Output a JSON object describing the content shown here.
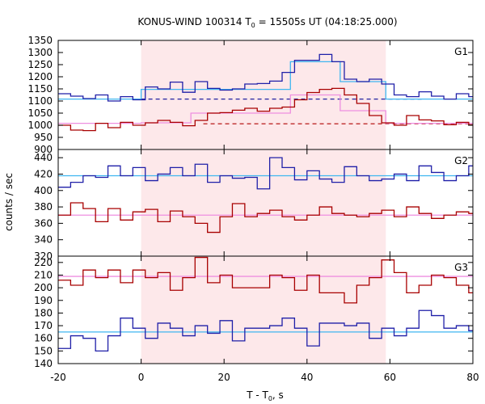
{
  "chart_data": {
    "type": "line",
    "title": "KONUS-WIND 100314 T",
    "title_sub": "0",
    "title_rest": " = 15505s UT (04:18:25.000)",
    "xlabel_main": "T - T",
    "xlabel_sub": "0",
    "xlabel_rest": ", s",
    "ylabel": "counts / sec",
    "xlim": [
      -20,
      80
    ],
    "x_ticks": [
      -20,
      0,
      20,
      40,
      60,
      80
    ],
    "shaded_interval": [
      0,
      59
    ],
    "colors": {
      "blue_step": "#1f1fa8",
      "red_step": "#a80000",
      "blue_fit": "#3fb6f0",
      "pink_fit": "#ee8fe0",
      "blue_bg": "#2222a0",
      "red_bg": "#b00000",
      "shade": "#fde8ea"
    },
    "panels": [
      {
        "name": "G1",
        "ylim": [
          900,
          1350
        ],
        "y_ticks": [
          900,
          950,
          1000,
          1050,
          1100,
          1150,
          1200,
          1250,
          1300,
          1350
        ],
        "bin_edges": [
          -20,
          -17,
          -14,
          -11,
          -8,
          -5,
          -2,
          1,
          4,
          7,
          10,
          13,
          16,
          19,
          22,
          25,
          28,
          31,
          34,
          37,
          40,
          43,
          46,
          49,
          52,
          55,
          58,
          61,
          64,
          67,
          70,
          73,
          76,
          79,
          80
        ],
        "blue_step": [
          1130,
          1120,
          1110,
          1125,
          1100,
          1118,
          1105,
          1158,
          1150,
          1178,
          1136,
          1180,
          1152,
          1145,
          1150,
          1170,
          1172,
          1182,
          1218,
          1268,
          1268,
          1292,
          1262,
          1190,
          1180,
          1190,
          1170,
          1125,
          1118,
          1138,
          1120,
          1108,
          1130,
          1118
        ],
        "red_step": [
          1000,
          980,
          978,
          1008,
          990,
          1012,
          1000,
          1010,
          1020,
          1012,
          998,
          1020,
          1050,
          1052,
          1062,
          1070,
          1058,
          1070,
          1075,
          1105,
          1135,
          1148,
          1152,
          1125,
          1090,
          1040,
          1010,
          1000,
          1040,
          1022,
          1018,
          1002,
          1012,
          1002
        ],
        "blue_fit": {
          "pre": 1108,
          "segments": [
            [
              0,
              6,
              1148
            ],
            [
              6,
              12,
              1148
            ],
            [
              12,
              18,
              1148
            ],
            [
              18,
              24,
              1148
            ],
            [
              24,
              30,
              1148
            ],
            [
              30,
              36,
              1148
            ],
            [
              36,
              42,
              1262
            ],
            [
              42,
              48,
              1262
            ],
            [
              48,
              54,
              1180
            ],
            [
              54,
              59,
              1180
            ]
          ],
          "post": 1108
        },
        "pink_fit": {
          "pre": 1008,
          "segments": [
            [
              0,
              6,
              1010
            ],
            [
              6,
              12,
              1010
            ],
            [
              12,
              18,
              1050
            ],
            [
              18,
              24,
              1050
            ],
            [
              24,
              30,
              1050
            ],
            [
              30,
              36,
              1050
            ],
            [
              36,
              42,
              1125
            ],
            [
              42,
              48,
              1125
            ],
            [
              48,
              54,
              1060
            ],
            [
              54,
              59,
              1060
            ]
          ],
          "post": 1008
        },
        "blue_bg": 1108,
        "red_bg": 1006
      },
      {
        "name": "G2",
        "ylim": [
          320,
          450
        ],
        "y_ticks": [
          320,
          340,
          360,
          380,
          400,
          420,
          440
        ],
        "bin_edges": [
          -20,
          -17,
          -14,
          -11,
          -8,
          -5,
          -2,
          1,
          4,
          7,
          10,
          13,
          16,
          19,
          22,
          25,
          28,
          31,
          34,
          37,
          40,
          43,
          46,
          49,
          52,
          55,
          58,
          61,
          64,
          67,
          70,
          73,
          76,
          79,
          80
        ],
        "blue_step": [
          404,
          410,
          418,
          416,
          430,
          418,
          428,
          412,
          420,
          428,
          418,
          432,
          410,
          418,
          415,
          416,
          402,
          440,
          428,
          413,
          424,
          414,
          410,
          429,
          418,
          412,
          414,
          420,
          412,
          430,
          422,
          412,
          418,
          430
        ],
        "red_step": [
          370,
          385,
          378,
          362,
          378,
          364,
          374,
          377,
          362,
          375,
          368,
          360,
          349,
          368,
          384,
          368,
          372,
          376,
          368,
          364,
          370,
          380,
          372,
          370,
          368,
          372,
          376,
          368,
          380,
          372,
          366,
          370,
          374,
          372
        ],
        "blue_fit": {
          "pre": 418,
          "segments": [
            [
              0,
              59,
              418
            ]
          ],
          "post": 418
        },
        "pink_fit": {
          "pre": 370,
          "segments": [
            [
              0,
              59,
              370
            ]
          ],
          "post": 370
        },
        "blue_bg": 418,
        "red_bg": 370
      },
      {
        "name": "G3",
        "ylim": [
          140,
          225
        ],
        "y_ticks": [
          140,
          150,
          160,
          170,
          180,
          190,
          200,
          210,
          220
        ],
        "bin_edges": [
          -20,
          -17,
          -14,
          -11,
          -8,
          -5,
          -2,
          1,
          4,
          7,
          10,
          13,
          16,
          19,
          22,
          25,
          28,
          31,
          34,
          37,
          40,
          43,
          46,
          49,
          52,
          55,
          58,
          61,
          64,
          67,
          70,
          73,
          76,
          79,
          80
        ],
        "blue_step": [
          152,
          162,
          160,
          150,
          162,
          176,
          168,
          160,
          172,
          168,
          162,
          170,
          164,
          174,
          158,
          168,
          168,
          170,
          176,
          168,
          154,
          172,
          172,
          170,
          172,
          160,
          168,
          162,
          168,
          182,
          178,
          168,
          170,
          166
        ],
        "red_step": [
          206,
          202,
          214,
          208,
          214,
          204,
          214,
          208,
          212,
          198,
          208,
          224,
          204,
          210,
          200,
          200,
          200,
          210,
          208,
          198,
          210,
          196,
          196,
          188,
          202,
          208,
          222,
          212,
          196,
          202,
          210,
          208,
          202,
          196
        ],
        "blue_fit": {
          "pre": 165,
          "segments": [
            [
              0,
              59,
              165
            ]
          ],
          "post": 165
        },
        "pink_fit": {
          "pre": 209,
          "segments": [
            [
              0,
              59,
              209
            ]
          ],
          "post": 209
        },
        "blue_bg": 165,
        "red_bg": 209
      }
    ]
  }
}
